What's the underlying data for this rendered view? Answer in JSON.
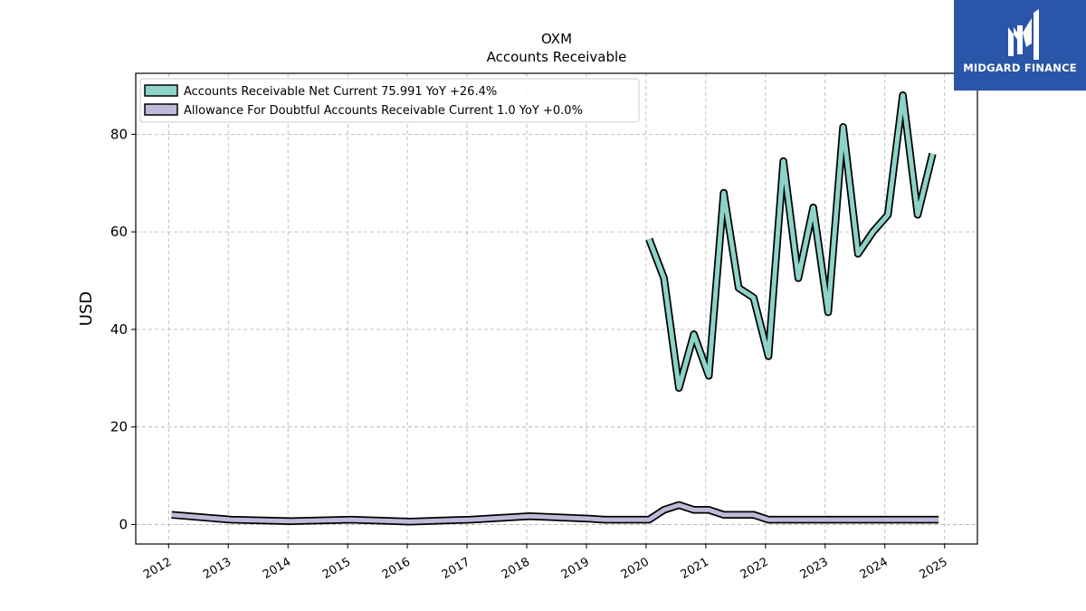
{
  "chart_data": {
    "type": "line",
    "title": "OXM",
    "subtitle": "Accounts Receivable",
    "xlabel": "",
    "ylabel": "USD",
    "xlim": [
      2011.45,
      2025.55
    ],
    "ylim": [
      -4,
      92.5
    ],
    "yticks": [
      0,
      20,
      40,
      60,
      80
    ],
    "xticks": [
      "2012",
      "2013",
      "2014",
      "2015",
      "2016",
      "2017",
      "2018",
      "2019",
      "2020",
      "2021",
      "2022",
      "2023",
      "2024",
      "2025"
    ],
    "grid": true,
    "legend_position": "top-left",
    "series": [
      {
        "name": "Accounts Receivable Net Current",
        "legend_label": "Accounts Receivable Net Current  75.991 YoY +26.4%",
        "color": "#8dd3c7",
        "points": [
          [
            2020.05,
            58.5
          ],
          [
            2020.3,
            50.5
          ],
          [
            2020.55,
            28.0
          ],
          [
            2020.8,
            39.0
          ],
          [
            2021.05,
            30.5
          ],
          [
            2021.3,
            68.0
          ],
          [
            2021.55,
            48.5
          ],
          [
            2021.8,
            46.5
          ],
          [
            2022.05,
            34.5
          ],
          [
            2022.3,
            74.5
          ],
          [
            2022.55,
            50.5
          ],
          [
            2022.8,
            65.0
          ],
          [
            2023.05,
            43.5
          ],
          [
            2023.3,
            81.5
          ],
          [
            2023.55,
            55.5
          ],
          [
            2023.8,
            60.0
          ],
          [
            2024.05,
            63.5
          ],
          [
            2024.3,
            88.0
          ],
          [
            2024.55,
            63.5
          ],
          [
            2024.8,
            76.0
          ]
        ]
      },
      {
        "name": "Allowance For Doubtful Accounts Receivable Current",
        "legend_label": "Allowance For Doubtful Accounts Receivable Current  1.0 YoY +0.0%",
        "color": "#bebada",
        "points": [
          [
            2012.05,
            2.0
          ],
          [
            2013.05,
            1.0
          ],
          [
            2014.05,
            0.7
          ],
          [
            2015.05,
            1.0
          ],
          [
            2016.05,
            0.6
          ],
          [
            2017.05,
            1.0
          ],
          [
            2018.05,
            1.7
          ],
          [
            2019.05,
            1.2
          ],
          [
            2019.3,
            1.0
          ],
          [
            2020.05,
            1.0
          ],
          [
            2020.3,
            3.0
          ],
          [
            2020.55,
            4.0
          ],
          [
            2020.8,
            3.0
          ],
          [
            2021.05,
            3.0
          ],
          [
            2021.3,
            2.0
          ],
          [
            2021.55,
            2.0
          ],
          [
            2021.8,
            2.0
          ],
          [
            2022.05,
            1.0
          ],
          [
            2022.3,
            1.0
          ],
          [
            2022.55,
            1.0
          ],
          [
            2022.8,
            1.0
          ],
          [
            2023.05,
            1.0
          ],
          [
            2023.3,
            1.0
          ],
          [
            2023.55,
            1.0
          ],
          [
            2023.8,
            1.0
          ],
          [
            2024.05,
            1.0
          ],
          [
            2024.3,
            1.0
          ],
          [
            2024.55,
            1.0
          ],
          [
            2024.8,
            1.0
          ],
          [
            2024.9,
            1.0
          ]
        ]
      }
    ]
  },
  "logo": {
    "text": "MIDGARD FINANCE",
    "color": "#2a55a8"
  }
}
